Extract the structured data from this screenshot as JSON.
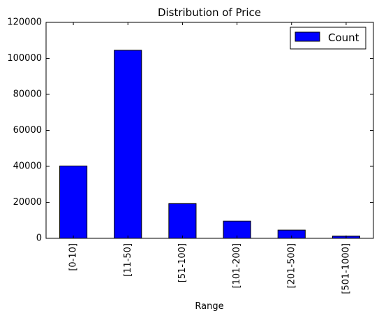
{
  "chart_data": {
    "type": "bar",
    "title": "Distribution of Price",
    "xlabel": "Range",
    "ylabel": "",
    "categories": [
      "[0-10]",
      "[11-50]",
      "[51-100]",
      "[101-200]",
      "[201-500]",
      "[501-1000]"
    ],
    "series": [
      {
        "name": "Count",
        "values": [
          40200,
          104500,
          19300,
          9600,
          4600,
          1200
        ]
      }
    ],
    "ylim": [
      0,
      120000
    ],
    "yticks": [
      "0",
      "20000",
      "40000",
      "60000",
      "80000",
      "100000",
      "120000"
    ],
    "grid": false,
    "legend_position": "top-right",
    "bar_color": "#0000ff",
    "edge_color": "#000000"
  }
}
